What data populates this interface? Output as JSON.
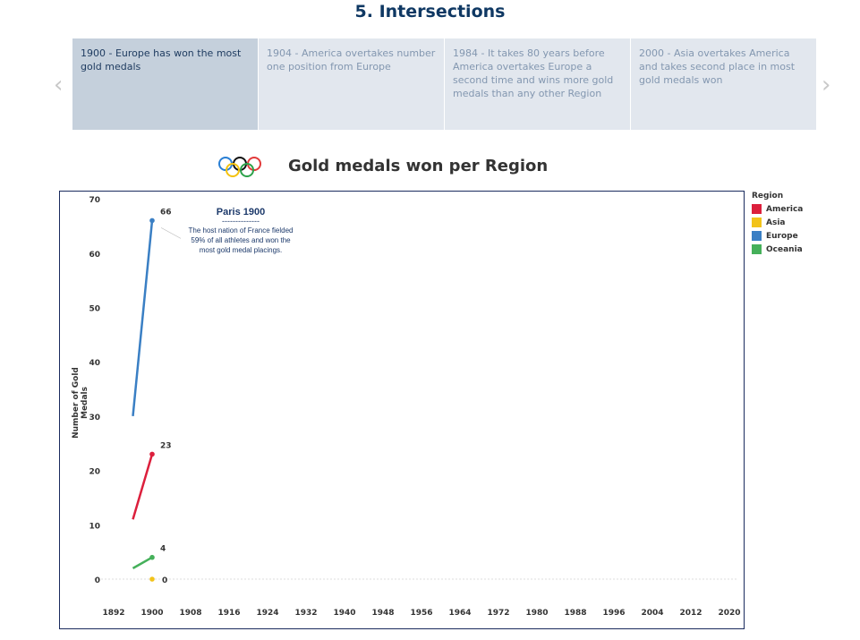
{
  "header": {
    "title": "5. Intersections"
  },
  "story": {
    "cards": [
      {
        "label": "1900 - Europe has won the most gold medals",
        "active": true
      },
      {
        "label": "1904 - America overtakes number one position from Europe",
        "active": false
      },
      {
        "label": "1984 - It takes 80 years before America overtakes Europe a second time and wins more gold medals than any other Region",
        "active": false
      },
      {
        "label": "2000 - Asia overtakes America and takes second place in most gold medals won",
        "active": false
      }
    ],
    "prev_icon": "chevron-left-icon",
    "next_icon": "chevron-right-icon",
    "prev": "‹",
    "next": "›"
  },
  "chart_title": "Gold medals won per Region",
  "annotation": {
    "title": "Paris 1900",
    "divider": "--------------",
    "body": "The host nation of France fielded 59% of all athletes and won the most gold medal placings."
  },
  "legend": {
    "title": "Region",
    "items": [
      {
        "name": "America",
        "color": "#dc1f3c"
      },
      {
        "name": "Asia",
        "color": "#f2c31a"
      },
      {
        "name": "Europe",
        "color": "#3a7fc4"
      },
      {
        "name": "Oceania",
        "color": "#45b05a"
      }
    ]
  },
  "chart_data": {
    "type": "line",
    "ylabel": "Number of Gold Medals",
    "xlabel": "",
    "x_ticks": [
      1892,
      1900,
      1908,
      1916,
      1924,
      1932,
      1940,
      1948,
      1956,
      1964,
      1972,
      1980,
      1988,
      1996,
      2004,
      2012,
      2020
    ],
    "y_ticks": [
      0,
      10,
      20,
      30,
      40,
      50,
      60,
      70
    ],
    "xlim": [
      1892,
      2020
    ],
    "ylim": [
      0,
      70
    ],
    "series": [
      {
        "name": "America",
        "color": "#dc1f3c",
        "points": [
          [
            1896,
            11
          ],
          [
            1900,
            23
          ]
        ],
        "label": "23"
      },
      {
        "name": "Asia",
        "color": "#f2c31a",
        "points": [
          [
            1900,
            0
          ]
        ],
        "label": "0"
      },
      {
        "name": "Europe",
        "color": "#3a7fc4",
        "points": [
          [
            1896,
            30
          ],
          [
            1900,
            66
          ]
        ],
        "label": "66"
      },
      {
        "name": "Oceania",
        "color": "#45b05a",
        "points": [
          [
            1896,
            2
          ],
          [
            1900,
            4
          ]
        ],
        "label": "4"
      }
    ]
  }
}
